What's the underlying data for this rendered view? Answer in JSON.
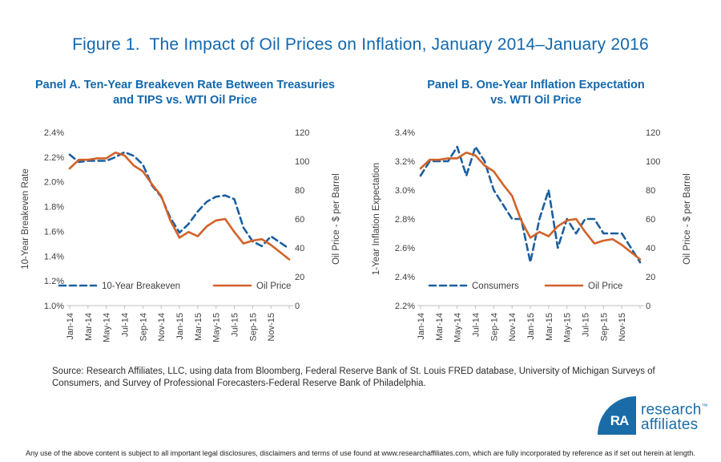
{
  "title": "Figure 1.  The Impact of Oil Prices on Inflation, January 2014–January 2016",
  "colors": {
    "title_blue": "#1268AE",
    "line_blue": "#1B5F9E",
    "line_orange": "#D2622A",
    "axis_gray": "#BFBFBF",
    "tick_text": "#3F3F3F",
    "logo_blue": "#1A6CA8"
  },
  "chart_data": [
    {
      "type": "line",
      "panel_title_line1": "Panel A. Ten-Year Breakeven Rate Between Treasuries",
      "panel_title_line2": "and TIPS vs. WTI Oil Price",
      "categories": [
        "Jan-14",
        "Feb-14",
        "Mar-14",
        "Apr-14",
        "May-14",
        "Jun-14",
        "Jul-14",
        "Aug-14",
        "Sep-14",
        "Oct-14",
        "Nov-14",
        "Dec-14",
        "Jan-15",
        "Feb-15",
        "Mar-15",
        "Apr-15",
        "May-15",
        "Jun-15",
        "Jul-15",
        "Aug-15",
        "Sep-15",
        "Oct-15",
        "Nov-15",
        "Dec-15",
        "Jan-16"
      ],
      "x_tick_labels": [
        "Jan-14",
        "Mar-14",
        "May-14",
        "Jul-14",
        "Sep-14",
        "Nov-14",
        "Jan-15",
        "Mar-15",
        "May-15",
        "Jul-15",
        "Sep-15",
        "Nov-15"
      ],
      "left_axis": {
        "label": "10-Year Breakeven Rate",
        "min": 1.0,
        "max": 2.4,
        "tick_labels": [
          "2.4%",
          "2.2%",
          "2.0%",
          "1.8%",
          "1.6%",
          "1.4%",
          "1.2%",
          "1.0%"
        ]
      },
      "right_axis": {
        "label": "Oil Price - $ per Barrel",
        "min": 0,
        "max": 120,
        "tick_labels": [
          "120",
          "100",
          "80",
          "60",
          "40",
          "20",
          "0"
        ]
      },
      "legend": {
        "position": "inside-bottom"
      },
      "series": [
        {
          "name": "10-Year Breakeven",
          "axis": "left",
          "style": "dashed",
          "color_key": "line_blue",
          "values": [
            2.22,
            2.16,
            2.17,
            2.17,
            2.17,
            2.2,
            2.24,
            2.21,
            2.14,
            1.97,
            1.88,
            1.71,
            1.59,
            1.66,
            1.76,
            1.84,
            1.88,
            1.89,
            1.86,
            1.63,
            1.52,
            1.48,
            1.56,
            1.51,
            1.46
          ]
        },
        {
          "name": "Oil Price",
          "axis": "right",
          "style": "solid",
          "color_key": "line_orange",
          "values": [
            95,
            101,
            101,
            102,
            102,
            106,
            104,
            97,
            93,
            84,
            76,
            59,
            47,
            51,
            48,
            55,
            59,
            60,
            51,
            43,
            45,
            46,
            42,
            37,
            32
          ]
        }
      ]
    },
    {
      "type": "line",
      "panel_title_line1": "Panel B. One-Year Inflation Expectation",
      "panel_title_line2": "vs. WTI Oil Price",
      "categories": [
        "Jan-14",
        "Feb-14",
        "Mar-14",
        "Apr-14",
        "May-14",
        "Jun-14",
        "Jul-14",
        "Aug-14",
        "Sep-14",
        "Oct-14",
        "Nov-14",
        "Dec-14",
        "Jan-15",
        "Feb-15",
        "Mar-15",
        "Apr-15",
        "May-15",
        "Jun-15",
        "Jul-15",
        "Aug-15",
        "Sep-15",
        "Oct-15",
        "Nov-15",
        "Dec-15",
        "Jan-16"
      ],
      "x_tick_labels": [
        "Jan-14",
        "Mar-14",
        "May-14",
        "Jul-14",
        "Sep-14",
        "Nov-14",
        "Jan-15",
        "Mar-15",
        "May-15",
        "Jul-15",
        "Sep-15",
        "Nov-15"
      ],
      "left_axis": {
        "label": "1-Year Inflation Expectation",
        "min": 2.2,
        "max": 3.4,
        "tick_labels": [
          "3.4%",
          "3.2%",
          "3.0%",
          "2.8%",
          "2.6%",
          "2.4%",
          "2.2%"
        ]
      },
      "right_axis": {
        "label": "Oil Price - $ per Barrel",
        "min": 0,
        "max": 120,
        "tick_labels": [
          "120",
          "100",
          "80",
          "60",
          "40",
          "20",
          "0"
        ]
      },
      "legend": {
        "position": "inside-bottom"
      },
      "series": [
        {
          "name": "Consumers",
          "axis": "left",
          "style": "dashed",
          "color_key": "line_blue",
          "values": [
            3.1,
            3.2,
            3.2,
            3.2,
            3.3,
            3.1,
            3.3,
            3.2,
            3.0,
            2.9,
            2.8,
            2.8,
            2.5,
            2.8,
            3.0,
            2.6,
            2.8,
            2.7,
            2.8,
            2.8,
            2.7,
            2.7,
            2.7,
            2.6,
            2.5
          ]
        },
        {
          "name": "Oil Price",
          "axis": "right",
          "style": "solid",
          "color_key": "line_orange",
          "values": [
            95,
            101,
            101,
            102,
            102,
            106,
            104,
            97,
            93,
            84,
            76,
            59,
            47,
            51,
            48,
            55,
            59,
            60,
            51,
            43,
            45,
            46,
            42,
            37,
            32
          ]
        }
      ]
    }
  ],
  "source": {
    "line1": "Source: Research Affiliates, LLC, using data from Bloomberg, Federal Reserve Bank of St. Louis FRED database, University of Michigan Surveys of",
    "line2": "Consumers, and Survey of Professional Forecasters-Federal Reserve Bank of Philadelphia."
  },
  "logo": {
    "monogram": "RA",
    "line1": "research",
    "tm": "™",
    "line2": "affiliates"
  },
  "footer": "Any use of the above content is subject to all important legal disclosures, disclaimers and terms of use found at www.researchaffiliates.com, which are fully incorporated by reference as if set out herein at length."
}
